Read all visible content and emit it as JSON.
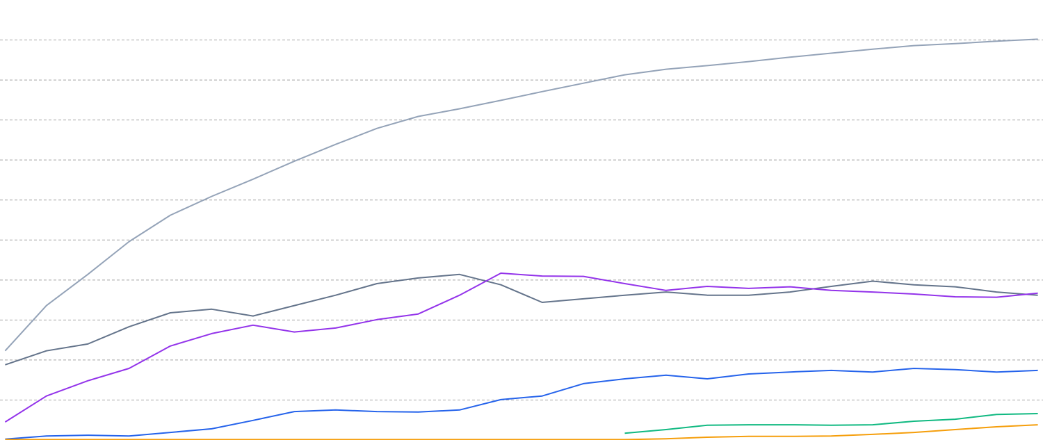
{
  "chart_data": {
    "type": "line",
    "x": [
      0,
      4,
      8,
      12,
      16,
      20,
      24,
      28,
      32,
      36,
      40,
      44,
      48,
      52,
      56,
      60,
      64,
      68,
      72,
      76,
      80,
      84,
      88,
      92,
      96,
      100
    ],
    "xlim": [
      -0.5,
      100.5
    ],
    "ylim": [
      0,
      11
    ],
    "yticks": [
      1,
      2,
      3,
      4,
      5,
      6,
      7,
      8,
      9,
      10
    ],
    "grid": true,
    "series": [
      {
        "color": "#94a3b8",
        "values": [
          2.23,
          3.36,
          4.14,
          4.96,
          5.62,
          6.09,
          6.52,
          6.97,
          7.39,
          7.79,
          8.09,
          8.28,
          8.49,
          8.71,
          8.92,
          9.13,
          9.27,
          9.36,
          9.46,
          9.57,
          9.67,
          9.77,
          9.86,
          9.91,
          9.97,
          10.02
        ]
      },
      {
        "color": "#64748b",
        "values": [
          1.88,
          2.23,
          2.4,
          2.83,
          3.18,
          3.27,
          3.1,
          3.36,
          3.62,
          3.91,
          4.05,
          4.14,
          3.88,
          3.44,
          3.53,
          3.62,
          3.7,
          3.62,
          3.62,
          3.7,
          3.84,
          3.97,
          3.88,
          3.83,
          3.7,
          3.62
        ]
      },
      {
        "color": "#9333ea",
        "values": [
          0.45,
          1.1,
          1.48,
          1.79,
          2.35,
          2.66,
          2.87,
          2.7,
          2.8,
          3.01,
          3.15,
          3.62,
          4.17,
          4.1,
          4.09,
          3.91,
          3.74,
          3.84,
          3.79,
          3.83,
          3.74,
          3.7,
          3.65,
          3.58,
          3.57,
          3.67
        ]
      },
      {
        "color": "#2563eb",
        "values": [
          0.02,
          0.1,
          0.12,
          0.1,
          0.19,
          0.28,
          0.49,
          0.71,
          0.75,
          0.71,
          0.7,
          0.75,
          1.01,
          1.1,
          1.41,
          1.53,
          1.62,
          1.53,
          1.65,
          1.7,
          1.74,
          1.7,
          1.79,
          1.76,
          1.7,
          1.74
        ]
      },
      {
        "color": "#10b981",
        "values": [
          null,
          null,
          null,
          null,
          null,
          null,
          null,
          null,
          null,
          null,
          null,
          null,
          null,
          null,
          null,
          0.17,
          0.26,
          0.37,
          0.38,
          0.38,
          0.37,
          0.38,
          0.47,
          0.52,
          0.64,
          0.66
        ]
      },
      {
        "color": "#f59e0b",
        "values": [
          0.01,
          0.01,
          0.01,
          0.01,
          0.01,
          0.01,
          0.01,
          0.01,
          0.01,
          0.01,
          0.01,
          0.01,
          0.01,
          0.01,
          0.01,
          0.01,
          0.03,
          0.07,
          0.09,
          0.09,
          0.1,
          0.14,
          0.19,
          0.26,
          0.33,
          0.38
        ]
      }
    ]
  }
}
